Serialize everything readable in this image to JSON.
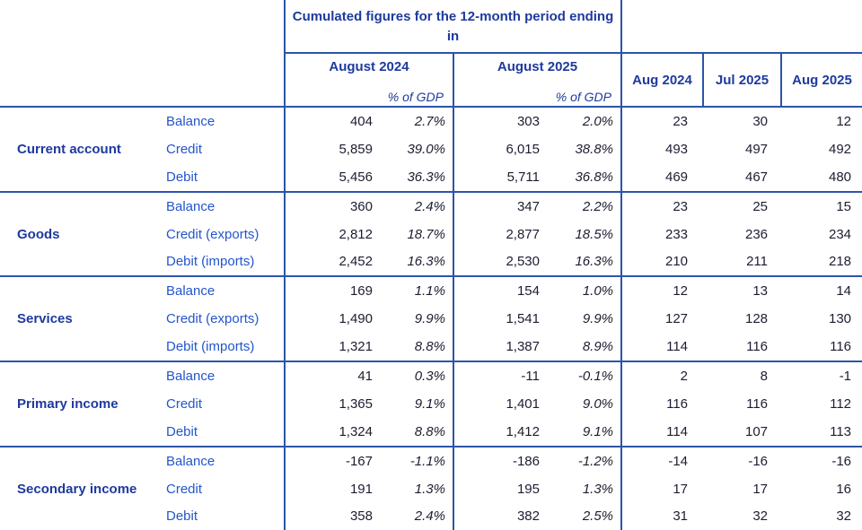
{
  "colors": {
    "line": "#2b55a8",
    "header_text": "#1e3a9e",
    "label_text": "#2356cb",
    "value_text": "#1d1d31",
    "background": "#ffffff"
  },
  "header": {
    "cumulated_title": "Cumulated figures for the 12-month period ending in",
    "period_columns": [
      {
        "label": "August 2024",
        "sub": "% of GDP"
      },
      {
        "label": "August 2025",
        "sub": "% of GDP"
      }
    ],
    "month_columns": [
      "Aug 2024",
      "Jul 2025",
      "Aug 2025"
    ]
  },
  "groups": [
    {
      "name": "Current account",
      "rows": [
        {
          "label": "Balance",
          "values": [
            "404",
            "2.7%",
            "303",
            "2.0%",
            "23",
            "30",
            "12"
          ]
        },
        {
          "label": "Credit",
          "values": [
            "5,859",
            "39.0%",
            "6,015",
            "38.8%",
            "493",
            "497",
            "492"
          ]
        },
        {
          "label": "Debit",
          "values": [
            "5,456",
            "36.3%",
            "5,711",
            "36.8%",
            "469",
            "467",
            "480"
          ]
        }
      ]
    },
    {
      "name": "Goods",
      "rows": [
        {
          "label": "Balance",
          "values": [
            "360",
            "2.4%",
            "347",
            "2.2%",
            "23",
            "25",
            "15"
          ]
        },
        {
          "label": "Credit (exports)",
          "values": [
            "2,812",
            "18.7%",
            "2,877",
            "18.5%",
            "233",
            "236",
            "234"
          ]
        },
        {
          "label": "Debit (imports)",
          "values": [
            "2,452",
            "16.3%",
            "2,530",
            "16.3%",
            "210",
            "211",
            "218"
          ]
        }
      ]
    },
    {
      "name": "Services",
      "rows": [
        {
          "label": "Balance",
          "values": [
            "169",
            "1.1%",
            "154",
            "1.0%",
            "12",
            "13",
            "14"
          ]
        },
        {
          "label": "Credit (exports)",
          "values": [
            "1,490",
            "9.9%",
            "1,541",
            "9.9%",
            "127",
            "128",
            "130"
          ]
        },
        {
          "label": "Debit (imports)",
          "values": [
            "1,321",
            "8.8%",
            "1,387",
            "8.9%",
            "114",
            "116",
            "116"
          ]
        }
      ]
    },
    {
      "name": "Primary income",
      "rows": [
        {
          "label": "Balance",
          "values": [
            "41",
            "0.3%",
            "-11",
            "-0.1%",
            "2",
            "8",
            "-1"
          ]
        },
        {
          "label": "Credit",
          "values": [
            "1,365",
            "9.1%",
            "1,401",
            "9.0%",
            "116",
            "116",
            "112"
          ]
        },
        {
          "label": "Debit",
          "values": [
            "1,324",
            "8.8%",
            "1,412",
            "9.1%",
            "114",
            "107",
            "113"
          ]
        }
      ]
    },
    {
      "name": "Secondary income",
      "rows": [
        {
          "label": "Balance",
          "values": [
            "-167",
            "-1.1%",
            "-186",
            "-1.2%",
            "-14",
            "-16",
            "-16"
          ]
        },
        {
          "label": "Credit",
          "values": [
            "191",
            "1.3%",
            "195",
            "1.3%",
            "17",
            "17",
            "16"
          ]
        },
        {
          "label": "Debit",
          "values": [
            "358",
            "2.4%",
            "382",
            "2.5%",
            "31",
            "32",
            "32"
          ]
        }
      ]
    }
  ]
}
